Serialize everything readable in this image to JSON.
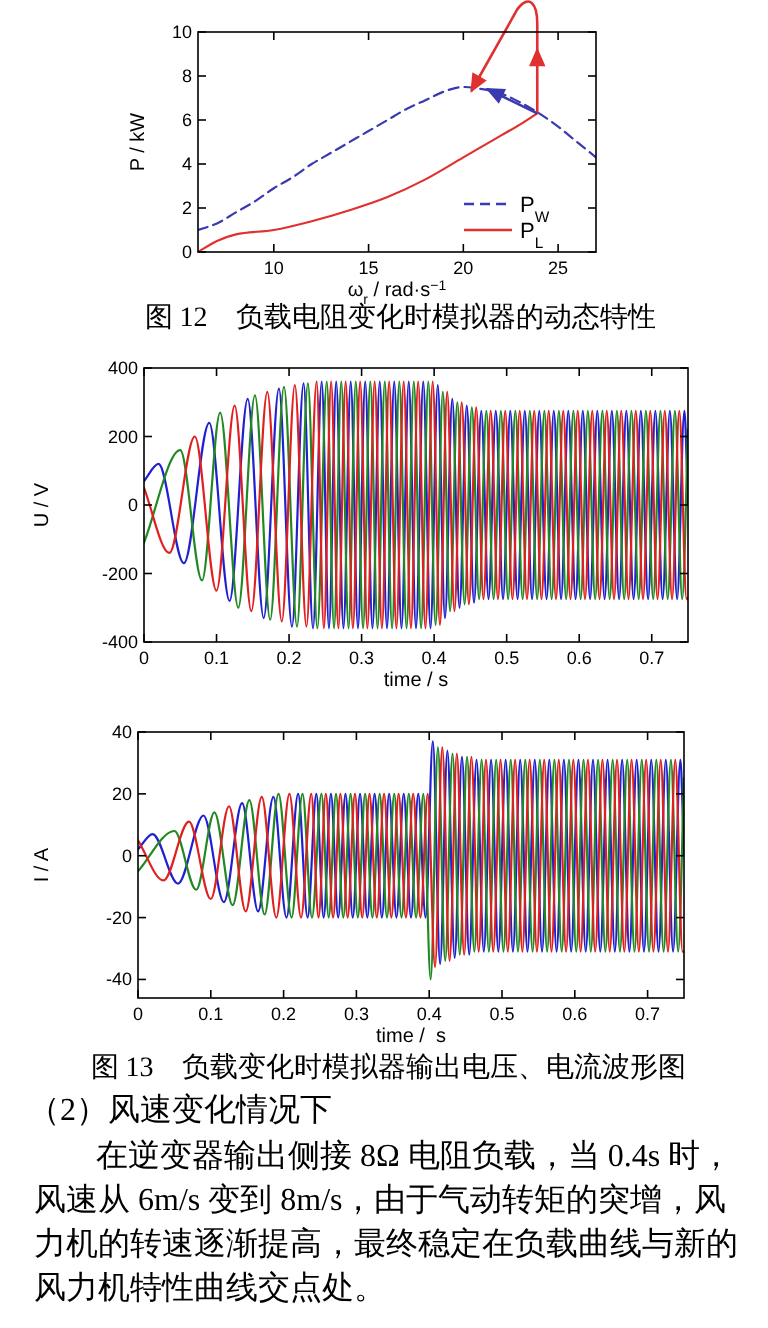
{
  "chart_data": [
    {
      "type": "line",
      "title": "图 12    负载电阻变化时模拟器的动态特性",
      "xlabel": "ω$_{r}$ / rad·s$^{−1}$",
      "ylabel": "P / kW",
      "xlim": [
        6,
        27
      ],
      "xticks": [
        10,
        15,
        20,
        25
      ],
      "ylim": [
        0,
        10
      ],
      "yticks": [
        0,
        2,
        4,
        6,
        8,
        10
      ],
      "legend": "bottom right",
      "series": [
        {
          "name": "P$_{W}$",
          "color": "#3a3ab0",
          "line_style": "dashed",
          "x": [
            6,
            7,
            8,
            9,
            10,
            11,
            12,
            13,
            14,
            15,
            16,
            17,
            18,
            19,
            20,
            21,
            22,
            23,
            24,
            25,
            26,
            27
          ],
          "values": [
            1.0,
            1.3,
            1.8,
            2.3,
            2.9,
            3.4,
            4.0,
            4.5,
            5.0,
            5.5,
            6.0,
            6.5,
            6.9,
            7.3,
            7.5,
            7.4,
            7.2,
            6.8,
            6.3,
            5.7,
            5.0,
            4.3
          ]
        },
        {
          "name": "P$_{L}$",
          "color": "#e03030",
          "line_style": "solid",
          "x": [
            6,
            7,
            8,
            10,
            12,
            14,
            16,
            18,
            20,
            22,
            23,
            23.9
          ],
          "values": [
            0,
            0.5,
            0.8,
            1.0,
            1.4,
            1.9,
            2.5,
            3.3,
            4.3,
            5.3,
            5.8,
            6.3
          ]
        }
      ]
    },
    {
      "type": "line",
      "xlabel": "time / s",
      "ylabel": "U / V",
      "xlim": [
        0,
        0.75
      ],
      "xticks": [
        0,
        0.1,
        0.2,
        0.3,
        0.4,
        0.5,
        0.6,
        0.7
      ],
      "ylim": [
        -400,
        400
      ],
      "yticks": [
        -400,
        -200,
        0,
        200,
        400
      ],
      "series": [
        {
          "color": "#2020d0",
          "x": [
            0,
            0.02,
            0.055,
            0.09,
            0.118,
            0.143,
            0.165,
            0.186,
            0.204,
            0.22,
            0.233,
            0.245,
            0.255,
            0.265,
            0.275,
            0.285,
            0.295,
            0.305,
            0.315,
            0.325,
            0.335,
            0.345,
            0.355,
            0.365,
            0.375,
            0.385,
            0.395,
            0.405,
            0.415,
            0.425,
            0.435,
            0.445,
            0.455,
            0.465,
            0.475,
            0.485,
            0.495,
            0.505,
            0.515,
            0.525,
            0.535,
            0.545,
            0.555,
            0.565,
            0.575,
            0.585,
            0.595,
            0.605,
            0.615,
            0.625,
            0.635,
            0.645,
            0.655,
            0.665,
            0.675,
            0.685,
            0.695,
            0.705,
            0.715,
            0.725,
            0.735,
            0.745,
            0.75
          ],
          "values": [
            70,
            120,
            -170,
            240,
            -280,
            310,
            -330,
            340,
            -355,
            355,
            -360,
            360,
            -360,
            360,
            -360,
            360,
            -360,
            360,
            -360,
            360,
            -360,
            360,
            -360,
            360,
            -360,
            360,
            -360,
            350,
            -330,
            310,
            -300,
            290,
            -285,
            275,
            -275,
            275,
            -275,
            275,
            -275,
            275,
            -275,
            275,
            -275,
            275,
            -275,
            275,
            -275,
            275,
            -275,
            275,
            -275,
            275,
            -275,
            275,
            -275,
            275,
            -275,
            275,
            -275,
            275,
            -275,
            275,
            0
          ]
        },
        {
          "color": "#228822",
          "x": [
            0,
            0.05,
            0.08,
            0.105,
            0.13,
            0.153,
            0.174,
            0.193,
            0.211,
            0.226,
            0.239,
            0.252,
            0.262,
            0.272,
            0.282,
            0.292,
            0.302,
            0.312,
            0.322,
            0.332,
            0.342,
            0.352,
            0.362,
            0.372,
            0.382,
            0.392,
            0.402,
            0.412,
            0.422,
            0.432,
            0.442,
            0.452,
            0.462,
            0.472,
            0.482,
            0.492,
            0.502,
            0.512,
            0.522,
            0.532,
            0.542,
            0.552,
            0.562,
            0.572,
            0.582,
            0.592,
            0.602,
            0.612,
            0.622,
            0.632,
            0.642,
            0.652,
            0.662,
            0.672,
            0.682,
            0.692,
            0.702,
            0.712,
            0.722,
            0.732,
            0.742,
            0.75
          ],
          "values": [
            -110,
            160,
            -220,
            270,
            -300,
            320,
            -335,
            345,
            -355,
            355,
            -360,
            360,
            -360,
            360,
            -360,
            360,
            -360,
            360,
            -360,
            360,
            -360,
            360,
            -360,
            360,
            -360,
            360,
            -350,
            330,
            -310,
            300,
            -290,
            285,
            -275,
            275,
            -275,
            275,
            -275,
            275,
            -275,
            275,
            -275,
            275,
            -275,
            275,
            -275,
            275,
            -275,
            275,
            -275,
            275,
            -275,
            275,
            -275,
            275,
            -275,
            275,
            -275,
            275,
            -275,
            275,
            -275,
            220
          ]
        },
        {
          "color": "#e02020",
          "x": [
            0,
            0.035,
            0.07,
            0.1,
            0.125,
            0.148,
            0.17,
            0.19,
            0.208,
            0.224,
            0.238,
            0.248,
            0.258,
            0.268,
            0.278,
            0.288,
            0.298,
            0.308,
            0.318,
            0.328,
            0.338,
            0.348,
            0.358,
            0.368,
            0.378,
            0.388,
            0.398,
            0.408,
            0.418,
            0.428,
            0.438,
            0.448,
            0.458,
            0.468,
            0.478,
            0.488,
            0.498,
            0.508,
            0.518,
            0.528,
            0.538,
            0.548,
            0.558,
            0.568,
            0.578,
            0.588,
            0.598,
            0.608,
            0.618,
            0.628,
            0.638,
            0.648,
            0.658,
            0.668,
            0.678,
            0.688,
            0.698,
            0.708,
            0.718,
            0.728,
            0.738,
            0.748,
            0.75
          ],
          "values": [
            50,
            -140,
            200,
            -250,
            290,
            -310,
            330,
            -340,
            350,
            -355,
            360,
            -360,
            360,
            -360,
            360,
            -360,
            360,
            -360,
            360,
            -360,
            360,
            -360,
            360,
            -360,
            360,
            -360,
            360,
            -350,
            330,
            -310,
            300,
            -290,
            285,
            -275,
            275,
            -275,
            275,
            -275,
            275,
            -275,
            275,
            -275,
            275,
            -275,
            275,
            -275,
            275,
            -275,
            275,
            -275,
            275,
            -275,
            275,
            -275,
            275,
            -275,
            275,
            -275,
            275,
            -275,
            275,
            -275,
            -270
          ]
        }
      ]
    },
    {
      "type": "line",
      "xlabel": "time /  s",
      "ylabel": "I / A",
      "xlim": [
        0,
        0.75
      ],
      "xticks": [
        0,
        0.1,
        0.2,
        0.3,
        0.4,
        0.5,
        0.6,
        0.7
      ],
      "ylim": [
        -46,
        40
      ],
      "yticks": [
        -40,
        -20,
        0,
        20,
        40
      ],
      "annotations": [
        "图 13    负载变化时模拟器输出电压、电流波形图",
        "（2）风速变化情况下",
        "在逆变器输出侧接 8Ω 电阻负载，当 0.4s 时，风速从 6m/s 变到 8m/s，由于气动转矩的突增，风力机的转速逐渐提高，最终稳定在负载曲线与新的风力机特性曲线交点处。"
      ],
      "series": [
        {
          "color": "#2020d0",
          "x": [
            0,
            0.02,
            0.055,
            0.09,
            0.118,
            0.143,
            0.165,
            0.186,
            0.204,
            0.22,
            0.233,
            0.245,
            0.255,
            0.265,
            0.275,
            0.285,
            0.295,
            0.305,
            0.315,
            0.325,
            0.335,
            0.345,
            0.355,
            0.365,
            0.375,
            0.385,
            0.395,
            0.405,
            0.415,
            0.425,
            0.435,
            0.445,
            0.455,
            0.465,
            0.475,
            0.485,
            0.495,
            0.505,
            0.515,
            0.525,
            0.535,
            0.545,
            0.555,
            0.565,
            0.575,
            0.585,
            0.595,
            0.605,
            0.615,
            0.625,
            0.635,
            0.645,
            0.655,
            0.665,
            0.675,
            0.685,
            0.695,
            0.705,
            0.715,
            0.725,
            0.735,
            0.745,
            0.75
          ],
          "values": [
            2,
            7,
            -9,
            13,
            -15,
            17,
            -18,
            19,
            -20,
            20,
            -20,
            20,
            -20,
            20,
            -20,
            20,
            -20,
            20,
            -20,
            20,
            -20,
            20,
            -20,
            20,
            -20,
            20,
            -20,
            37,
            -35,
            34,
            -33,
            32,
            -32,
            31,
            -31,
            31,
            -31,
            31,
            -31,
            31,
            -31,
            31,
            -31,
            31,
            -31,
            31,
            -31,
            31,
            -31,
            31,
            -31,
            31,
            -31,
            31,
            -31,
            31,
            -31,
            31,
            -31,
            31,
            -31,
            31,
            0
          ]
        },
        {
          "color": "#228822",
          "x": [
            0,
            0.05,
            0.08,
            0.105,
            0.13,
            0.153,
            0.174,
            0.193,
            0.211,
            0.226,
            0.239,
            0.252,
            0.262,
            0.272,
            0.282,
            0.292,
            0.302,
            0.312,
            0.322,
            0.332,
            0.342,
            0.352,
            0.362,
            0.372,
            0.382,
            0.392,
            0.402,
            0.412,
            0.422,
            0.432,
            0.442,
            0.452,
            0.462,
            0.472,
            0.482,
            0.492,
            0.502,
            0.512,
            0.522,
            0.532,
            0.542,
            0.552,
            0.562,
            0.572,
            0.582,
            0.592,
            0.602,
            0.612,
            0.622,
            0.632,
            0.642,
            0.652,
            0.662,
            0.672,
            0.682,
            0.692,
            0.702,
            0.712,
            0.722,
            0.732,
            0.742,
            0.75
          ],
          "values": [
            -5,
            8,
            -11,
            14,
            -16,
            18,
            -19,
            20,
            -20,
            20,
            -20,
            20,
            -20,
            20,
            -20,
            20,
            -20,
            20,
            -20,
            20,
            -20,
            20,
            -20,
            20,
            -20,
            20,
            -40,
            35,
            -34,
            33,
            -32,
            32,
            -31,
            31,
            -31,
            31,
            -31,
            31,
            -31,
            31,
            -31,
            31,
            -31,
            31,
            -31,
            31,
            -31,
            31,
            -31,
            31,
            -31,
            31,
            -31,
            31,
            -31,
            31,
            -31,
            31,
            -31,
            31,
            -31,
            25
          ]
        },
        {
          "color": "#e02020",
          "x": [
            0,
            0.035,
            0.07,
            0.1,
            0.125,
            0.148,
            0.17,
            0.19,
            0.208,
            0.224,
            0.238,
            0.248,
            0.258,
            0.268,
            0.278,
            0.288,
            0.298,
            0.308,
            0.318,
            0.328,
            0.338,
            0.348,
            0.358,
            0.368,
            0.378,
            0.388,
            0.398,
            0.408,
            0.418,
            0.428,
            0.438,
            0.448,
            0.458,
            0.468,
            0.478,
            0.488,
            0.498,
            0.508,
            0.518,
            0.528,
            0.538,
            0.548,
            0.558,
            0.568,
            0.578,
            0.588,
            0.598,
            0.608,
            0.618,
            0.628,
            0.638,
            0.648,
            0.658,
            0.668,
            0.678,
            0.688,
            0.698,
            0.708,
            0.718,
            0.728,
            0.738,
            0.748,
            0.75
          ],
          "values": [
            5,
            -8,
            11,
            -14,
            16,
            -18,
            19,
            -20,
            20,
            -20,
            20,
            -20,
            20,
            -20,
            20,
            -20,
            20,
            -20,
            20,
            -20,
            20,
            -20,
            20,
            -20,
            20,
            -20,
            20,
            -36,
            35,
            -34,
            33,
            -32,
            32,
            -31,
            31,
            -31,
            31,
            -31,
            31,
            -31,
            31,
            -31,
            31,
            -31,
            31,
            -31,
            31,
            -31,
            31,
            -31,
            31,
            -31,
            31,
            -31,
            31,
            -31,
            31,
            -31,
            31,
            -31,
            31,
            -31,
            -31
          ]
        }
      ]
    }
  ]
}
